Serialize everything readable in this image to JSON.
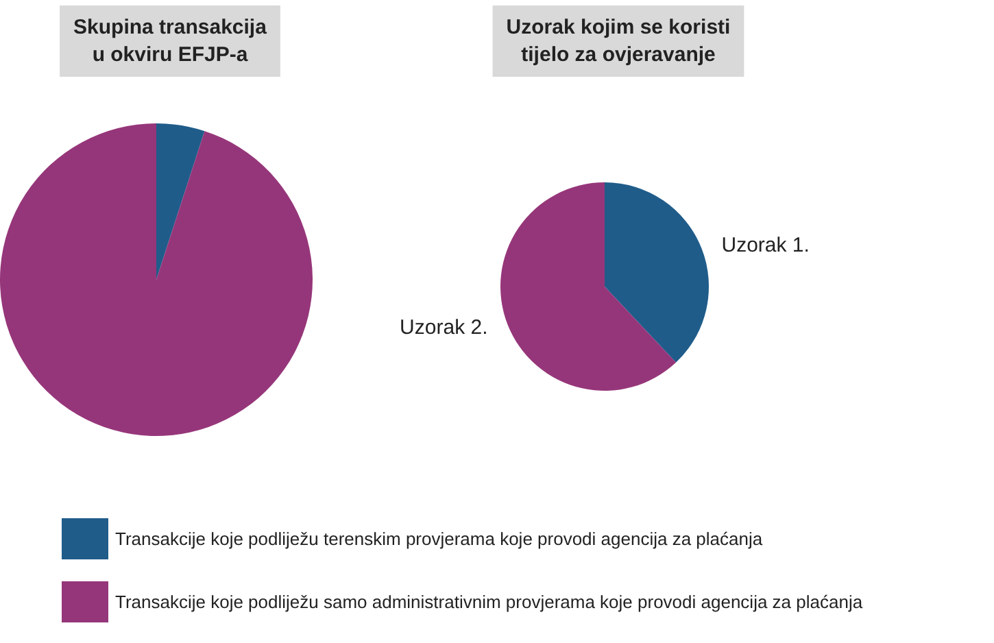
{
  "chart_data": [
    {
      "type": "pie",
      "title": "Skupina transakcija\nu okviru EFJP-a",
      "categories": [
        "Transakcije koje podliježu terenskim provjerama koje provodi agencija za plaćanja",
        "Transakcije koje podliježu samo administrativnim provjerama koje provodi agencija za plaćanja"
      ],
      "values": [
        5,
        95
      ],
      "colors": [
        "#1f5c8a",
        "#96367a"
      ],
      "legend": "bottom"
    },
    {
      "type": "pie",
      "title": "Uzorak kojim se koristi\ntijelo za ovjeravanje",
      "categories": [
        "Uzorak 1.",
        "Uzorak 2."
      ],
      "values": [
        38,
        62
      ],
      "colors": [
        "#1f5c8a",
        "#96367a"
      ]
    }
  ]
}
